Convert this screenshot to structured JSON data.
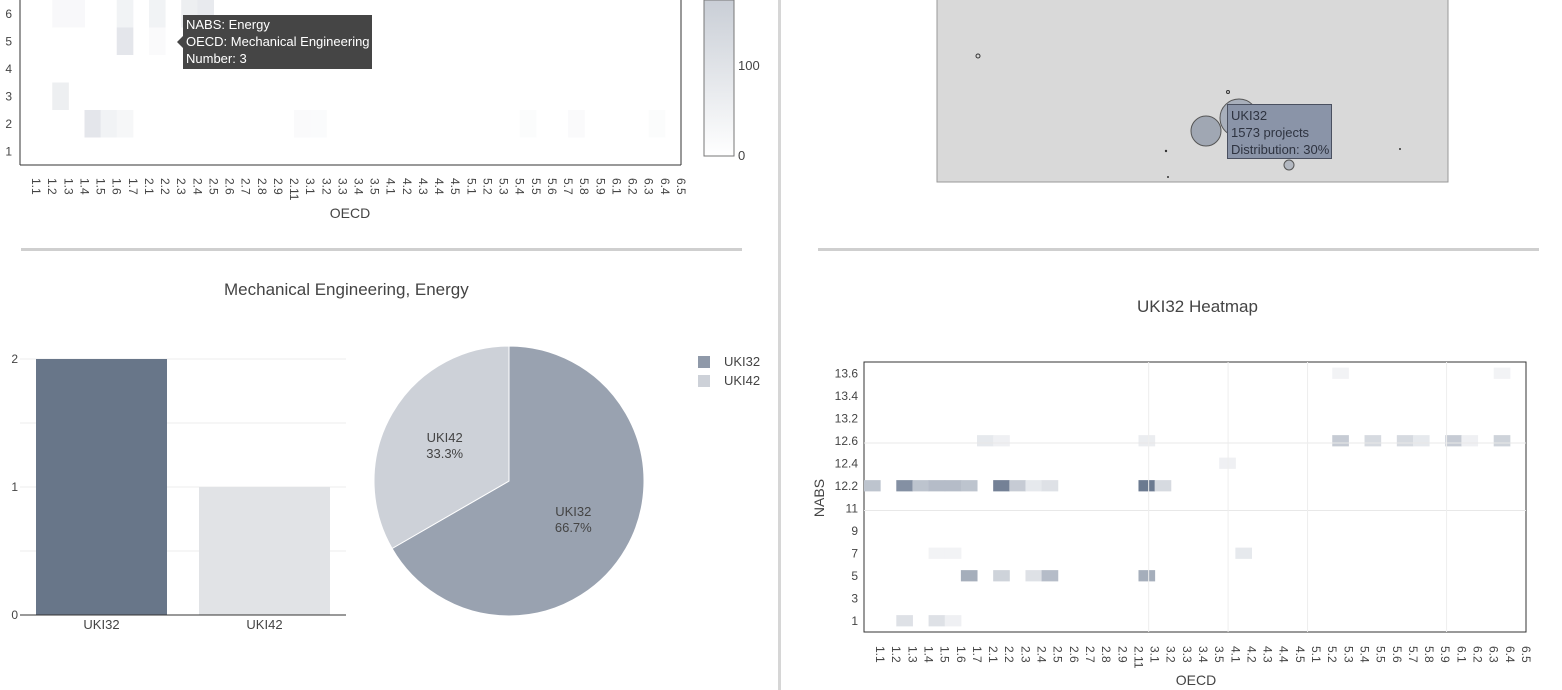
{
  "top_left_heatmap": {
    "xlabel": "OECD",
    "y_ticks": [
      "1",
      "2",
      "3",
      "4",
      "5",
      "6"
    ],
    "x_ticks": [
      "1.1",
      "1.2",
      "1.3",
      "1.4",
      "1.5",
      "1.6",
      "1.7",
      "2.1",
      "2.2",
      "2.3",
      "2.4",
      "2.5",
      "2.6",
      "2.7",
      "2.8",
      "2.9",
      "2.11",
      "3.1",
      "3.2",
      "3.3",
      "3.4",
      "3.5",
      "4.1",
      "4.2",
      "4.3",
      "4.4",
      "4.5",
      "5.1",
      "5.2",
      "5.3",
      "5.4",
      "5.5",
      "5.6",
      "5.7",
      "5.8",
      "5.9",
      "6.1",
      "6.2",
      "6.3",
      "6.4",
      "6.5"
    ],
    "colorbar_ticks": [
      "100",
      "0"
    ],
    "tooltip": {
      "line1": "NABS: Energy",
      "line2": "OECD: Mechanical Engineering",
      "line3": "Number: 3"
    },
    "colorscale": [
      "#ffffff",
      "#5b6b84"
    ]
  },
  "top_right_bubble_map": {
    "tooltip": {
      "line1": "UKI32",
      "line2": "1573 projects",
      "line3": "Distribution: 30%"
    },
    "background": "#d9d9d9"
  },
  "bottom_left": {
    "title": "Mechanical Engineering, Energy",
    "legend": [
      {
        "label": "UKI32",
        "color": "#8f99a9"
      },
      {
        "label": "UKI42",
        "color": "#cdd1d8"
      }
    ]
  },
  "bottom_right_heatmap": {
    "title": "UKI32 Heatmap",
    "xlabel": "OECD",
    "ylabel": "NABS",
    "y_ticks": [
      "1",
      "3",
      "5",
      "7",
      "9",
      "11",
      "12.2",
      "12.4",
      "12.6",
      "13.2",
      "13.4",
      "13.6"
    ],
    "x_ticks": [
      "1.1",
      "1.2",
      "1.3",
      "1.4",
      "1.5",
      "1.6",
      "1.7",
      "2.1",
      "2.2",
      "2.3",
      "2.4",
      "2.5",
      "2.6",
      "2.7",
      "2.8",
      "2.9",
      "2.11",
      "3.1",
      "3.2",
      "3.3",
      "3.4",
      "3.5",
      "4.1",
      "4.2",
      "4.3",
      "4.4",
      "4.5",
      "5.1",
      "5.2",
      "5.3",
      "5.4",
      "5.5",
      "5.6",
      "5.7",
      "5.8",
      "5.9",
      "6.1",
      "6.2",
      "6.3",
      "6.4",
      "6.5"
    ]
  },
  "chart_data": [
    {
      "type": "heatmap",
      "title": "",
      "xlabel": "OECD",
      "ylabel": "",
      "y_categories": [
        "1",
        "2",
        "3",
        "4",
        "5",
        "6"
      ],
      "x_categories": [
        "1.1",
        "1.2",
        "1.3",
        "1.4",
        "1.5",
        "1.6",
        "1.7",
        "2.1",
        "2.2",
        "2.3",
        "2.4",
        "2.5",
        "2.6",
        "2.7",
        "2.8",
        "2.9",
        "2.11",
        "3.1",
        "3.2",
        "3.3",
        "3.4",
        "3.5",
        "4.1",
        "4.2",
        "4.3",
        "4.4",
        "4.5",
        "5.1",
        "5.2",
        "5.3",
        "5.4",
        "5.5",
        "5.6",
        "5.7",
        "5.8",
        "5.9",
        "6.1",
        "6.2",
        "6.3",
        "6.4",
        "6.5"
      ],
      "colorbar_range": [
        0,
        180
      ],
      "cells": [
        {
          "x": "1.3",
          "y": "3",
          "value": 20
        },
        {
          "x": "1.5",
          "y": "2",
          "value": 30
        },
        {
          "x": "1.6",
          "y": "2",
          "value": 15
        },
        {
          "x": "1.7",
          "y": "2",
          "value": 10
        },
        {
          "x": "1.7",
          "y": "5",
          "value": 30
        },
        {
          "x": "1.7",
          "y": "6",
          "value": 15
        },
        {
          "x": "1.3",
          "y": "6",
          "value": 8
        },
        {
          "x": "1.4",
          "y": "6",
          "value": 8
        },
        {
          "x": "2.2",
          "y": "6",
          "value": 15
        },
        {
          "x": "2.4",
          "y": "6",
          "value": 20
        },
        {
          "x": "2.5",
          "y": "6",
          "value": 25
        },
        {
          "x": "2.2",
          "y": "5",
          "value": 6
        },
        {
          "x": "3.1",
          "y": "2",
          "value": 6
        },
        {
          "x": "3.2",
          "y": "2",
          "value": 5
        },
        {
          "x": "5.8",
          "y": "2",
          "value": 6
        },
        {
          "x": "5.5",
          "y": "2",
          "value": 4
        },
        {
          "x": "6.4",
          "y": "2",
          "value": 4
        },
        {
          "x": "2.5",
          "y": "5",
          "value": 3
        }
      ]
    },
    {
      "type": "bar",
      "title": "Mechanical Engineering, Energy",
      "categories": [
        "UKI32",
        "UKI42"
      ],
      "values": [
        2,
        1
      ],
      "colors": [
        "#687689",
        "#e1e3e6"
      ],
      "ylim": [
        0,
        2
      ],
      "y_ticks": [
        0,
        1,
        2
      ]
    },
    {
      "type": "pie",
      "title": "Mechanical Engineering, Energy",
      "labels": [
        "UKI32",
        "UKI42"
      ],
      "values": [
        2,
        1
      ],
      "percent_labels": [
        "66.7%",
        "33.3%"
      ],
      "colors": [
        "#99a2b0",
        "#cdd1d8"
      ]
    },
    {
      "type": "heatmap",
      "title": "UKI32 Heatmap",
      "xlabel": "OECD",
      "ylabel": "NABS",
      "y_categories": [
        "1",
        "3",
        "5",
        "7",
        "9",
        "11",
        "12.2",
        "12.4",
        "12.6",
        "13.2",
        "13.4",
        "13.6"
      ],
      "x_categories": [
        "1.1",
        "1.2",
        "1.3",
        "1.4",
        "1.5",
        "1.6",
        "1.7",
        "2.1",
        "2.2",
        "2.3",
        "2.4",
        "2.5",
        "2.6",
        "2.7",
        "2.8",
        "2.9",
        "2.11",
        "3.1",
        "3.2",
        "3.3",
        "3.4",
        "3.5",
        "4.1",
        "4.2",
        "4.3",
        "4.4",
        "4.5",
        "5.1",
        "5.2",
        "5.3",
        "5.4",
        "5.5",
        "5.6",
        "5.7",
        "5.8",
        "5.9",
        "6.1",
        "6.2",
        "6.3",
        "6.4",
        "6.5"
      ],
      "cells": [
        {
          "x": "1.1",
          "y": "12.2",
          "value": 40
        },
        {
          "x": "1.3",
          "y": "12.2",
          "value": 75
        },
        {
          "x": "1.4",
          "y": "12.2",
          "value": 40
        },
        {
          "x": "1.5",
          "y": "12.2",
          "value": 45
        },
        {
          "x": "1.6",
          "y": "12.2",
          "value": 45
        },
        {
          "x": "1.7",
          "y": "12.2",
          "value": 40
        },
        {
          "x": "2.2",
          "y": "12.2",
          "value": 85
        },
        {
          "x": "2.3",
          "y": "12.2",
          "value": 35
        },
        {
          "x": "2.4",
          "y": "12.2",
          "value": 15
        },
        {
          "x": "2.5",
          "y": "12.2",
          "value": 20
        },
        {
          "x": "3.1",
          "y": "12.2",
          "value": 90
        },
        {
          "x": "3.2",
          "y": "12.2",
          "value": 25
        },
        {
          "x": "1.7",
          "y": "5",
          "value": 55
        },
        {
          "x": "2.2",
          "y": "5",
          "value": 30
        },
        {
          "x": "2.4",
          "y": "5",
          "value": 20
        },
        {
          "x": "2.5",
          "y": "5",
          "value": 45
        },
        {
          "x": "3.1",
          "y": "5",
          "value": 55
        },
        {
          "x": "1.3",
          "y": "1",
          "value": 20
        },
        {
          "x": "1.5",
          "y": "1",
          "value": 20
        },
        {
          "x": "1.6",
          "y": "1",
          "value": 10
        },
        {
          "x": "1.5",
          "y": "7",
          "value": 8
        },
        {
          "x": "1.6",
          "y": "7",
          "value": 8
        },
        {
          "x": "4.2",
          "y": "7",
          "value": 15
        },
        {
          "x": "4.1",
          "y": "12.4",
          "value": 10
        },
        {
          "x": "5.3",
          "y": "12.6",
          "value": 35
        },
        {
          "x": "5.5",
          "y": "12.6",
          "value": 25
        },
        {
          "x": "5.7",
          "y": "12.6",
          "value": 25
        },
        {
          "x": "5.8",
          "y": "12.6",
          "value": 15
        },
        {
          "x": "6.1",
          "y": "12.6",
          "value": 35
        },
        {
          "x": "6.2",
          "y": "12.6",
          "value": 10
        },
        {
          "x": "6.4",
          "y": "12.6",
          "value": 30
        },
        {
          "x": "2.1",
          "y": "12.6",
          "value": 15
        },
        {
          "x": "2.2",
          "y": "12.6",
          "value": 10
        },
        {
          "x": "3.1",
          "y": "12.6",
          "value": 12
        },
        {
          "x": "5.3",
          "y": "13.6",
          "value": 8
        },
        {
          "x": "6.4",
          "y": "13.6",
          "value": 8
        }
      ]
    }
  ]
}
